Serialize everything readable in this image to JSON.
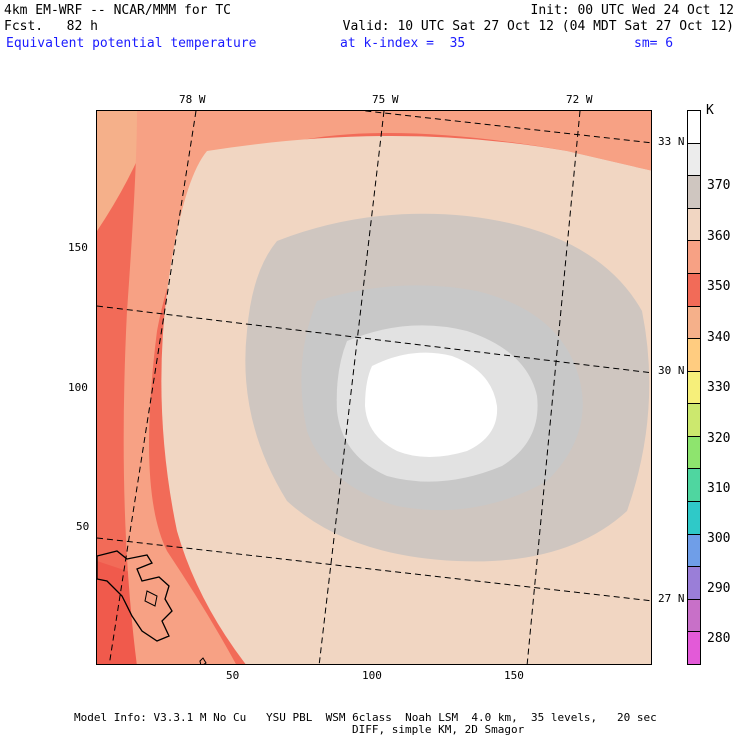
{
  "header": {
    "left_line1": "4km EM-WRF -- NCAR/MMM for TC",
    "left_line2": "Fcst.   82 h",
    "right_line1": "Init: 00 UTC Wed 24 Oct 12",
    "right_line2": "Valid: 10 UTC Sat 27 Oct 12 (04 MDT Sat 27 Oct 12)",
    "field": "Equivalent potential temperature",
    "level": "at k-index =  35",
    "smoothing": "sm= 6"
  },
  "map": {
    "x_ticks": [
      "50",
      "100",
      "150"
    ],
    "y_ticks": [
      "50",
      "100",
      "150"
    ],
    "lon_labels": [
      "78 W",
      "75 W",
      "72 W"
    ],
    "lat_labels": [
      "33 N",
      "30 N",
      "27 N"
    ],
    "x_range": [
      0,
      200
    ],
    "y_range": [
      0,
      200
    ],
    "field_colors": {
      "ring_330": "#f5b08a",
      "band_340": "#f26b58",
      "band_345": "#f7a184",
      "band_350": "#f1d6c2",
      "band_355": "#cfc6c0",
      "band_360": "#c8c8c8",
      "band_365": "#e2e2e2",
      "core_370": "#ffffff"
    }
  },
  "colorbar": {
    "unit": "K",
    "levels": [
      "370",
      "360",
      "350",
      "340",
      "330",
      "320",
      "310",
      "300",
      "290",
      "280"
    ],
    "colors": [
      "#ffffff",
      "#ececec",
      "#cfc6c0",
      "#f1d6c2",
      "#f7a184",
      "#f26b58",
      "#f5b08a",
      "#ffcc80",
      "#f6ef7a",
      "#cce86e",
      "#8ee46e",
      "#4fd6a0",
      "#2fc9c8",
      "#6f9ee8",
      "#9a7ed8",
      "#c870c8",
      "#e35ad8"
    ]
  },
  "footer": {
    "line1": "Model Info: V3.3.1 M No Cu   YSU PBL  WSM 6class  Noah LSM  4.0 km,  35 levels,   20 sec",
    "line2": "DIFF, simple KM, 2D Smagor"
  }
}
